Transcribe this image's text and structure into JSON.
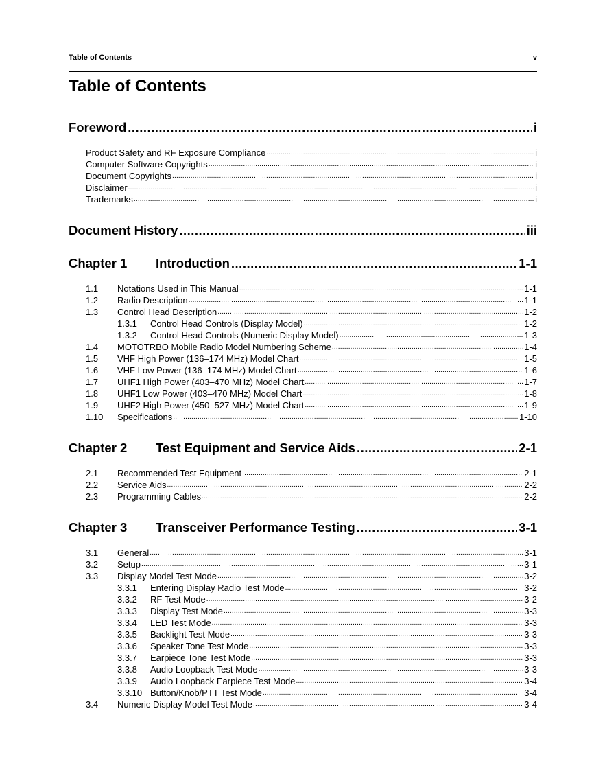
{
  "running_head": {
    "title": "Table of Contents",
    "page": "v"
  },
  "title": "Table of Contents",
  "sections": [
    {
      "chapter": "",
      "title": "Foreword",
      "page": "i",
      "entries": [
        {
          "num": "",
          "title": "Product Safety and RF Exposure Compliance",
          "page": "i",
          "level": 1
        },
        {
          "num": "",
          "title": "Computer Software Copyrights",
          "page": "i",
          "level": 1
        },
        {
          "num": "",
          "title": "Document Copyrights",
          "page": "i",
          "level": 1
        },
        {
          "num": "",
          "title": "Disclaimer",
          "page": "i",
          "level": 1
        },
        {
          "num": "",
          "title": "Trademarks",
          "page": "i",
          "level": 1
        }
      ]
    },
    {
      "chapter": "",
      "title": "Document History",
      "page": "iii",
      "entries": []
    },
    {
      "chapter": "Chapter 1",
      "title": "Introduction",
      "page": "1-1",
      "entries": [
        {
          "num": "1.1",
          "title": "Notations Used in This Manual",
          "page": "1-1",
          "level": 1
        },
        {
          "num": "1.2",
          "title": "Radio Description",
          "page": "1-1",
          "level": 1
        },
        {
          "num": "1.3",
          "title": "Control Head Description",
          "page": "1-2",
          "level": 1
        },
        {
          "num": "1.3.1",
          "title": "Control Head Controls (Display Model)",
          "page": "1-2",
          "level": 2
        },
        {
          "num": "1.3.2",
          "title": "Control Head Controls (Numeric Display Model)",
          "page": "1-3",
          "level": 2
        },
        {
          "num": "1.4",
          "title": "MOTOTRBO Mobile Radio Model Numbering Scheme",
          "page": "1-4",
          "level": 1
        },
        {
          "num": "1.5",
          "title": "VHF High Power (136–174 MHz) Model Chart",
          "page": "1-5",
          "level": 1
        },
        {
          "num": "1.6",
          "title": "VHF Low Power (136–174 MHz) Model Chart",
          "page": "1-6",
          "level": 1
        },
        {
          "num": "1.7",
          "title": "UHF1 High Power (403–470 MHz) Model Chart",
          "page": "1-7",
          "level": 1
        },
        {
          "num": "1.8",
          "title": "UHF1 Low Power (403–470 MHz) Model Chart",
          "page": "1-8",
          "level": 1
        },
        {
          "num": "1.9",
          "title": "UHF2 High Power (450–527 MHz) Model Chart",
          "page": "1-9",
          "level": 1
        },
        {
          "num": "1.10",
          "title": "Specifications",
          "page": "1-10",
          "level": 1
        }
      ]
    },
    {
      "chapter": "Chapter 2",
      "title": "Test Equipment and Service Aids",
      "page": "2-1",
      "entries": [
        {
          "num": "2.1",
          "title": "Recommended Test Equipment",
          "page": "2-1",
          "level": 1
        },
        {
          "num": "2.2",
          "title": "Service Aids",
          "page": "2-2",
          "level": 1
        },
        {
          "num": "2.3",
          "title": "Programming Cables",
          "page": "2-2",
          "level": 1
        }
      ]
    },
    {
      "chapter": "Chapter 3",
      "title": "Transceiver Performance Testing",
      "page": "3-1",
      "entries": [
        {
          "num": "3.1",
          "title": "General",
          "page": "3-1",
          "level": 1
        },
        {
          "num": "3.2",
          "title": "Setup",
          "page": "3-1",
          "level": 1
        },
        {
          "num": "3.3",
          "title": "Display Model Test Mode",
          "page": "3-2",
          "level": 1
        },
        {
          "num": "3.3.1",
          "title": "Entering Display Radio Test Mode",
          "page": "3-2",
          "level": 2
        },
        {
          "num": "3.3.2",
          "title": "RF Test Mode",
          "page": "3-2",
          "level": 2
        },
        {
          "num": "3.3.3",
          "title": "Display Test Mode",
          "page": "3-3",
          "level": 2
        },
        {
          "num": "3.3.4",
          "title": "LED Test Mode",
          "page": "3-3",
          "level": 2
        },
        {
          "num": "3.3.5",
          "title": "Backlight Test Mode",
          "page": "3-3",
          "level": 2
        },
        {
          "num": "3.3.6",
          "title": "Speaker Tone Test Mode",
          "page": "3-3",
          "level": 2
        },
        {
          "num": "3.3.7",
          "title": "Earpiece Tone Test Mode",
          "page": "3-3",
          "level": 2
        },
        {
          "num": "3.3.8",
          "title": "Audio Loopback Test Mode",
          "page": "3-3",
          "level": 2
        },
        {
          "num": "3.3.9",
          "title": "Audio Loopback Earpiece Test Mode",
          "page": "3-4",
          "level": 2
        },
        {
          "num": "3.3.10",
          "title": "Button/Knob/PTT Test Mode",
          "page": "3-4",
          "level": 2
        },
        {
          "num": "3.4",
          "title": "Numeric Display Model Test Mode",
          "page": "3-4",
          "level": 1
        }
      ]
    }
  ]
}
